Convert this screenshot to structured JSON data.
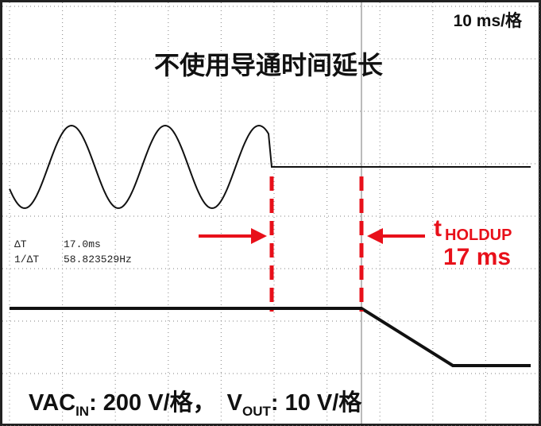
{
  "header": {
    "timebase": "10 ms/格",
    "title": "不使用导通时间延长"
  },
  "measurements": {
    "delta_t_label": "ΔT",
    "delta_t_value": "17.0ms",
    "inverse_label": "1/ΔT",
    "inverse_value": "58.823529Hz"
  },
  "annotation": {
    "symbol": "t",
    "subscript": "HOLDUP",
    "value": "17 ms"
  },
  "footer": {
    "vac": "VAC",
    "vac_sub": "IN",
    "vac_scale": ": 200 V/格，",
    "vout": "V",
    "vout_sub": "OUT",
    "vout_scale": ": 10 V/格"
  }
}
